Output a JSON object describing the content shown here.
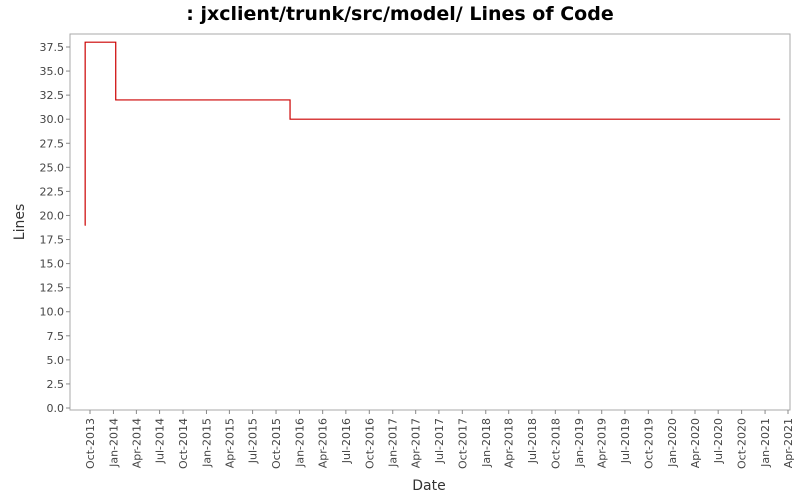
{
  "chart_data": {
    "type": "line",
    "title": ": jxclient/trunk/src/model/ Lines of Code",
    "xlabel": "Date",
    "ylabel": "Lines",
    "ylim": [
      0,
      39
    ],
    "y_ticks": [
      "0.0",
      "2.5",
      "5.0",
      "7.5",
      "10.0",
      "12.5",
      "15.0",
      "17.5",
      "20.0",
      "22.5",
      "25.0",
      "27.5",
      "30.0",
      "32.5",
      "35.0",
      "37.5"
    ],
    "x_ticks": [
      "Oct-2013",
      "Jan-2014",
      "Apr-2014",
      "Jul-2014",
      "Oct-2014",
      "Jan-2015",
      "Apr-2015",
      "Jul-2015",
      "Oct-2015",
      "Jan-2016",
      "Apr-2016",
      "Jul-2016",
      "Oct-2016",
      "Jan-2017",
      "Apr-2017",
      "Jul-2017",
      "Oct-2017",
      "Jan-2018",
      "Apr-2018",
      "Jul-2018",
      "Oct-2018",
      "Jan-2019",
      "Apr-2019",
      "Jul-2019",
      "Oct-2019",
      "Jan-2020",
      "Apr-2020",
      "Jul-2020",
      "Oct-2020",
      "Jan-2021",
      "Apr-2021"
    ],
    "grid": false,
    "series": [
      {
        "color": "#cc0000",
        "step": true,
        "points": [
          {
            "x": "2013-09-10",
            "y": 19
          },
          {
            "x": "2013-09-12",
            "y": 38
          },
          {
            "x": "2014-01-10",
            "y": 32
          },
          {
            "x": "2015-11-25",
            "y": 30
          },
          {
            "x": "2021-03-01",
            "y": 30
          }
        ]
      }
    ]
  }
}
